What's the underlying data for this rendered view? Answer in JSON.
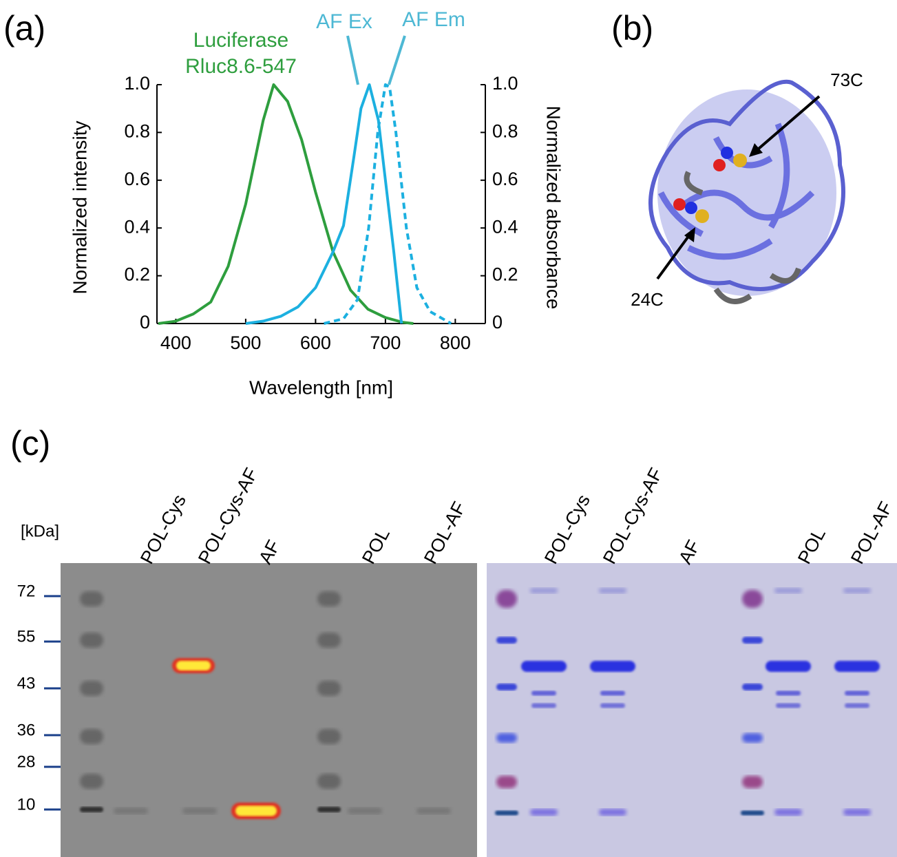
{
  "panels": {
    "a": "(a)",
    "b": "(b)",
    "c": "(c)"
  },
  "chart_data": {
    "type": "line",
    "xlabel": "Wavelength [nm]",
    "ylabel": "Normalized intensity",
    "y2label": "Normalized absorbance",
    "xlim": [
      373,
      843
    ],
    "xticks": [
      400,
      500,
      600,
      700,
      800
    ],
    "ylim": [
      0,
      1
    ],
    "yticks": [
      0,
      0.2,
      0.4,
      0.6,
      0.8,
      {
        "value": 1,
        "label": "1.0"
      }
    ],
    "y2lim": [
      0,
      1
    ],
    "y2ticks": [
      0,
      0.2,
      0.4,
      0.6,
      0.8,
      {
        "value": 1,
        "label": "1.0"
      }
    ],
    "series": [
      {
        "name": "Luciferase Rluc8.6-547",
        "color": "#2e9e3e",
        "dash": false,
        "x": [
          375,
          400,
          425,
          450,
          475,
          500,
          525,
          540,
          560,
          580,
          600,
          625,
          650,
          675,
          700,
          725,
          740
        ],
        "values": [
          0,
          0.01,
          0.04,
          0.09,
          0.24,
          0.5,
          0.85,
          1.0,
          0.93,
          0.77,
          0.55,
          0.3,
          0.14,
          0.06,
          0.025,
          0.005,
          0
        ]
      },
      {
        "name": "AF Ex",
        "color": "#1cb0e0",
        "dash": false,
        "axis": "y2",
        "x": [
          500,
          525,
          550,
          575,
          600,
          625,
          640,
          655,
          665,
          677,
          690,
          700,
          712,
          723
        ],
        "values": [
          0,
          0.01,
          0.03,
          0.07,
          0.15,
          0.3,
          0.41,
          0.7,
          0.9,
          1.0,
          0.85,
          0.6,
          0.3,
          0
        ]
      },
      {
        "name": "AF Em",
        "color": "#1cb0e0",
        "dash": true,
        "x": [
          612,
          640,
          660,
          676,
          689,
          700,
          706,
          715,
          730,
          745,
          764,
          794
        ],
        "values": [
          0,
          0.02,
          0.1,
          0.4,
          0.8,
          1.0,
          0.99,
          0.8,
          0.4,
          0.15,
          0.05,
          0
        ]
      }
    ]
  },
  "structure": {
    "labels": [
      "73C",
      "24C"
    ]
  },
  "gel": {
    "unit": "[kDa]",
    "markers": [
      72,
      55,
      43,
      36,
      28,
      10
    ],
    "left_lanes": [
      "POL-Cys",
      "POL-Cys-AF",
      "AF",
      "POL",
      "POL-AF"
    ],
    "right_lanes": [
      "POL-Cys",
      "POL-Cys-AF",
      "AF",
      "POL",
      "POL-AF"
    ]
  }
}
